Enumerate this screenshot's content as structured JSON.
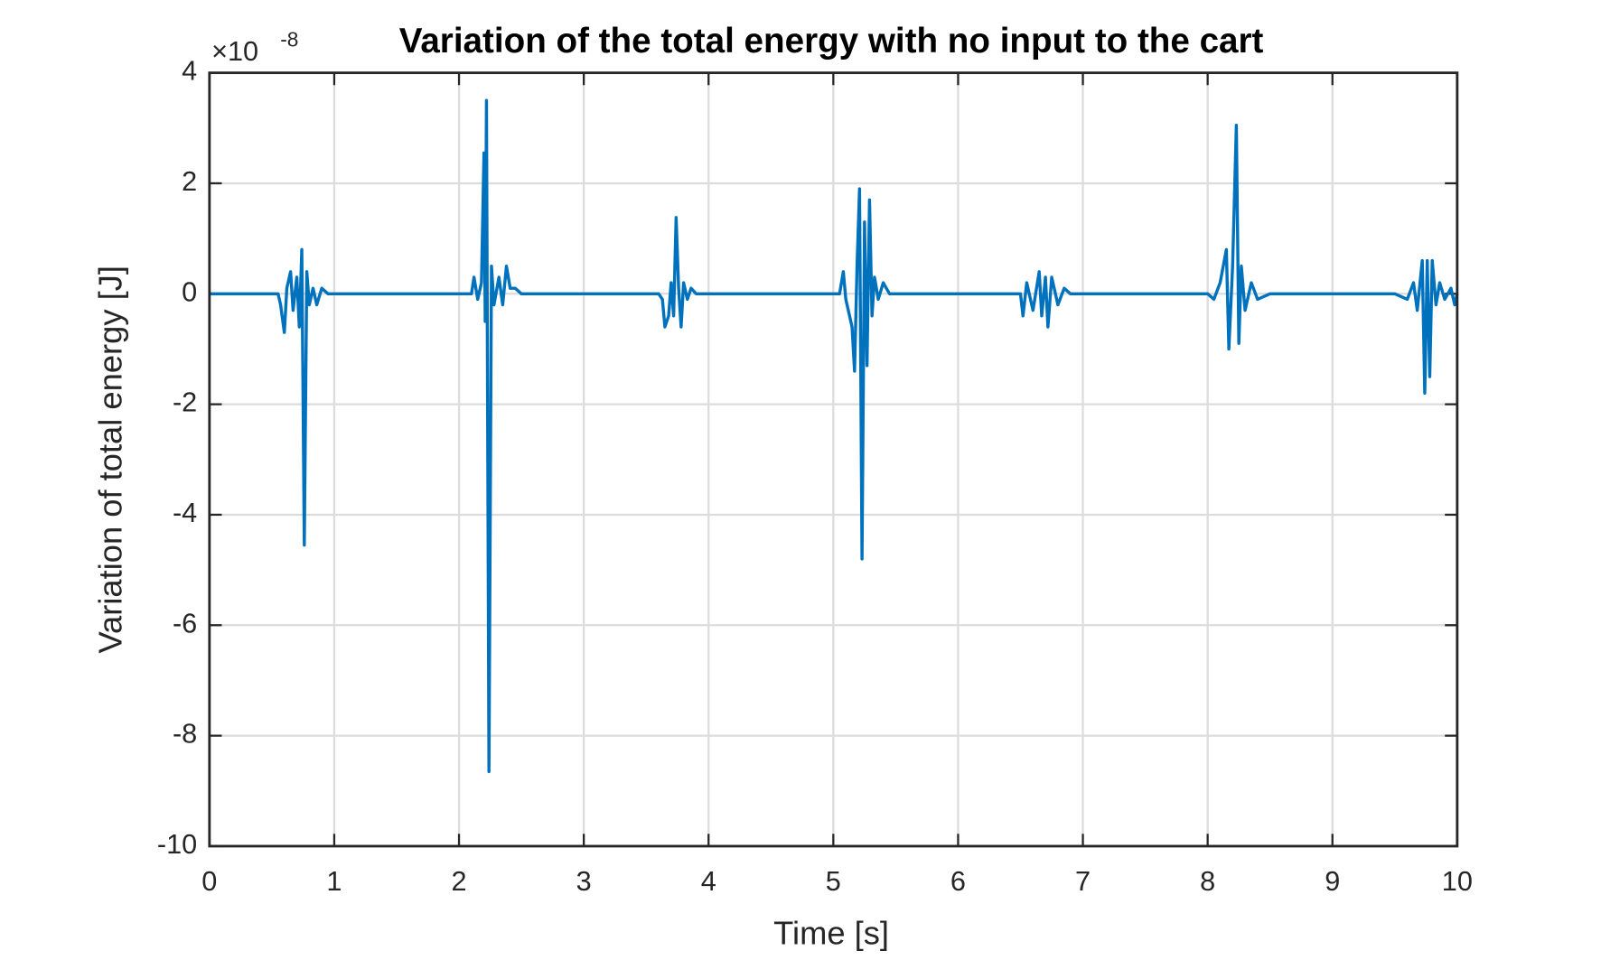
{
  "chart_data": {
    "type": "line",
    "title": "Variation of the total energy with no input to the cart",
    "xlabel": "Time [s]",
    "ylabel": "Variation of total energy [J]",
    "y_multiplier": "×10",
    "y_exponent": "-8",
    "color": "#0072bd",
    "grid": true,
    "xlim": [
      0,
      10
    ],
    "ylim": [
      -10,
      4
    ],
    "xticks": [
      0,
      1,
      2,
      3,
      4,
      5,
      6,
      7,
      8,
      9,
      10
    ],
    "yticks": [
      -10,
      -8,
      -6,
      -4,
      -2,
      0,
      2,
      4
    ],
    "x": [
      0,
      0.5,
      0.55,
      0.57,
      0.6,
      0.62,
      0.65,
      0.67,
      0.7,
      0.72,
      0.74,
      0.76,
      0.78,
      0.8,
      0.83,
      0.86,
      0.9,
      0.95,
      1.5,
      2.1,
      2.12,
      2.15,
      2.18,
      2.2,
      2.21,
      2.22,
      2.24,
      2.26,
      2.28,
      2.32,
      2.35,
      2.38,
      2.41,
      2.45,
      2.5,
      3.0,
      3.6,
      3.63,
      3.65,
      3.68,
      3.7,
      3.72,
      3.74,
      3.76,
      3.78,
      3.8,
      3.83,
      3.86,
      3.9,
      4.5,
      5.05,
      5.08,
      5.1,
      5.15,
      5.17,
      5.19,
      5.21,
      5.23,
      5.25,
      5.27,
      5.29,
      5.31,
      5.33,
      5.36,
      5.4,
      5.45,
      6.0,
      6.5,
      6.52,
      6.55,
      6.6,
      6.65,
      6.67,
      6.7,
      6.72,
      6.75,
      6.8,
      6.85,
      6.9,
      7.5,
      8.0,
      8.05,
      8.1,
      8.15,
      8.17,
      8.2,
      8.23,
      8.25,
      8.27,
      8.3,
      8.35,
      8.4,
      8.5,
      9.0,
      9.5,
      9.6,
      9.65,
      9.68,
      9.72,
      9.74,
      9.76,
      9.78,
      9.8,
      9.83,
      9.86,
      9.9,
      9.95,
      9.98,
      10
    ],
    "values": [
      0,
      0,
      0,
      -0.2,
      -0.7,
      0.1,
      0.4,
      -0.3,
      0.3,
      -0.6,
      0.8,
      -4.55,
      0.4,
      -0.2,
      0.1,
      -0.2,
      0.1,
      0,
      0,
      0,
      0.3,
      -0.1,
      0.2,
      2.55,
      -0.5,
      3.5,
      -8.65,
      0.5,
      -0.2,
      0.3,
      -0.2,
      0.5,
      0.1,
      0.1,
      0,
      0,
      0,
      -0.1,
      -0.6,
      -0.4,
      0.2,
      -0.4,
      1.38,
      0.1,
      -0.6,
      0.2,
      -0.1,
      0.1,
      0,
      0,
      0,
      0.4,
      -0.1,
      -0.6,
      -1.4,
      0.5,
      1.9,
      -4.8,
      1.3,
      -1.3,
      1.7,
      -0.4,
      0.3,
      -0.1,
      0.2,
      0,
      0,
      0,
      -0.4,
      0.2,
      -0.3,
      0.4,
      -0.4,
      0.3,
      -0.6,
      0.3,
      -0.2,
      0.1,
      0,
      0,
      0,
      -0.1,
      0.2,
      0.8,
      -1.0,
      0.5,
      3.05,
      -0.9,
      0.5,
      -0.3,
      0.2,
      -0.1,
      0,
      0,
      0,
      -0.1,
      0.2,
      -0.3,
      0.6,
      -1.8,
      0.6,
      -1.5,
      0.6,
      -0.2,
      0.2,
      -0.1,
      0.1,
      -0.2,
      0
    ]
  }
}
